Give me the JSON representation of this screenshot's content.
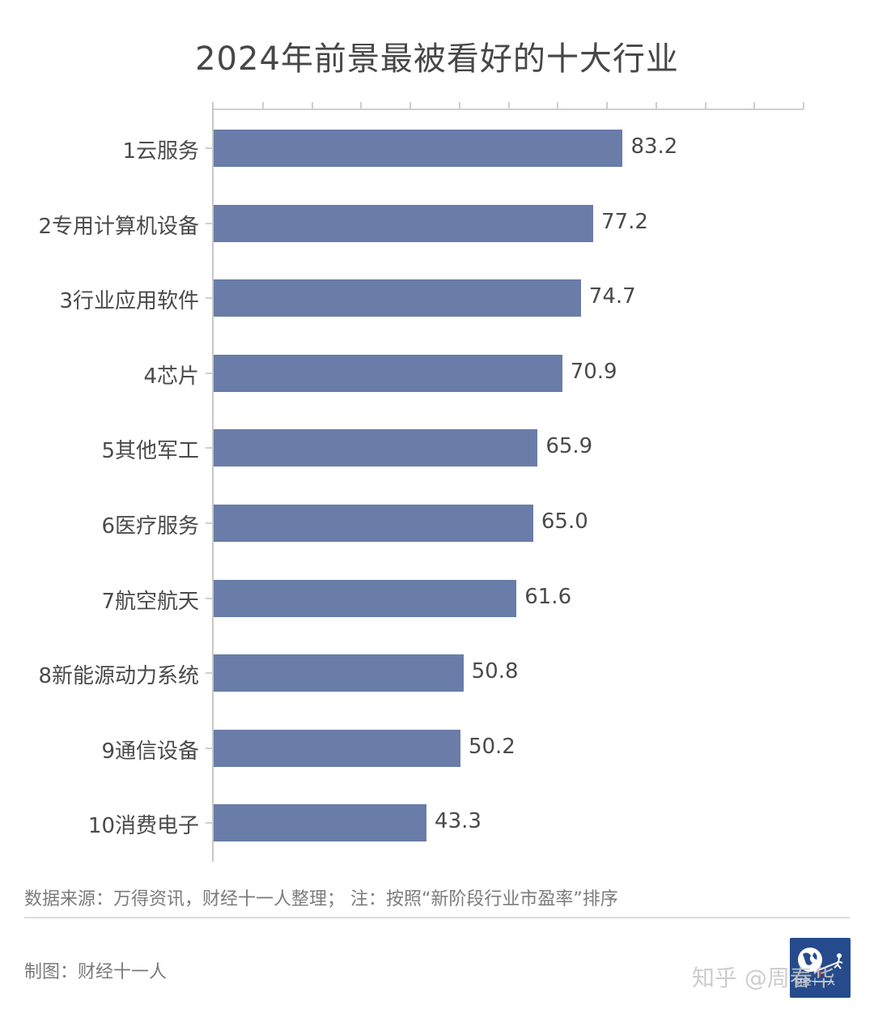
{
  "title": "2024年前景最被看好的十大行业",
  "chart_data": {
    "type": "bar",
    "orientation": "horizontal",
    "title": "2024年前景最被看好的十大行业",
    "xlabel": "",
    "ylabel": "",
    "xlim": [
      0,
      120
    ],
    "grid": false,
    "tick_count": 12,
    "categories": [
      "1云服务",
      "2专用计算机设备",
      "3行业应用软件",
      "4芯片",
      "5其他军工",
      "6医疗服务",
      "7航空航天",
      "8新能源动力系统",
      "9通信设备",
      "10消费电子"
    ],
    "values": [
      83.2,
      77.2,
      74.7,
      70.9,
      65.9,
      65.0,
      61.6,
      50.8,
      50.2,
      43.3
    ],
    "value_labels": [
      "83.2",
      "77.2",
      "74.7",
      "70.9",
      "65.9",
      "65.0",
      "61.6",
      "50.8",
      "50.2",
      "43.3"
    ],
    "bar_color": "#6a7da8"
  },
  "footer": {
    "source": "数据来源：万得资讯，财经十一人整理； 注：按照“新阶段行业市盈率”排序",
    "maker": "制图：财经十一人",
    "logo_text": "财经十一人",
    "watermark": "知乎 @周春华"
  }
}
